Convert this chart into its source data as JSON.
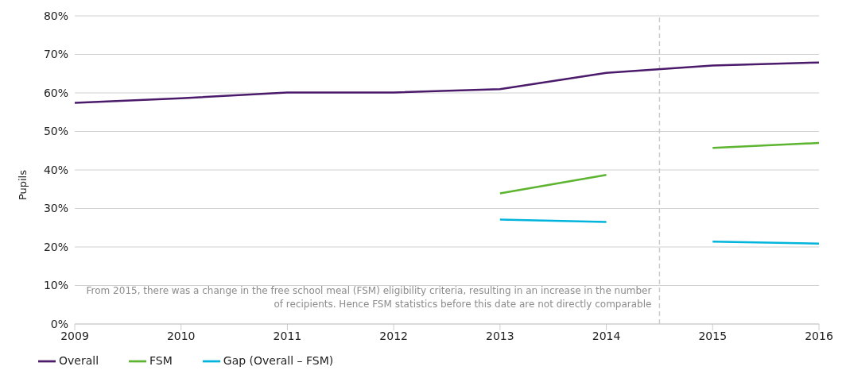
{
  "chart_data": {
    "type": "line",
    "ylabel": "Pupils",
    "x": [
      2009,
      2010,
      2011,
      2012,
      2013,
      2014,
      2015,
      2016
    ],
    "series": [
      {
        "name": "Overall",
        "color": "#4b1a6b",
        "values": [
          57.4,
          58.6,
          60.1,
          60.1,
          61.0,
          65.2,
          67.1,
          67.9
        ]
      },
      {
        "name": "FSM",
        "color": "#5db431",
        "x": [
          2013,
          2014,
          2014.5,
          2015,
          2016
        ],
        "values": [
          33.9,
          38.7,
          null,
          45.7,
          47.0
        ]
      },
      {
        "name": "Gap (Overall – FSM)",
        "color": "#00b4dc",
        "x": [
          2013,
          2014,
          2014.5,
          2015,
          2016
        ],
        "values": [
          27.1,
          26.5,
          null,
          21.4,
          20.9
        ]
      }
    ],
    "xlim": [
      2009,
      2016
    ],
    "xticks": [
      2009,
      2010,
      2011,
      2012,
      2013,
      2014,
      2015,
      2016
    ],
    "ylim": [
      0,
      80
    ],
    "yticks": [
      {
        "value": 0,
        "label": "0%"
      },
      {
        "value": 10,
        "label": "10%"
      },
      {
        "value": 20,
        "label": "20%"
      },
      {
        "value": 30,
        "label": "30%"
      },
      {
        "value": 40,
        "label": "40%"
      },
      {
        "value": 50,
        "label": "50%"
      },
      {
        "value": 60,
        "label": "60%"
      },
      {
        "value": 70,
        "label": "70%"
      },
      {
        "value": 80,
        "label": "80%"
      }
    ],
    "ref_lines": [
      {
        "axis": "x",
        "value": 2014.5,
        "color": "#cccccc",
        "line_style": "dashed"
      }
    ],
    "annotations": [
      "From 2015, there was a change in the free school meal (FSM) eligibility criteria, resulting in an increase in the number of recipients. Hence FSM statistics before this date are not directly comparable"
    ],
    "grid": "y",
    "legend": "bottom",
    "marker": "none",
    "line_style": "solid"
  }
}
